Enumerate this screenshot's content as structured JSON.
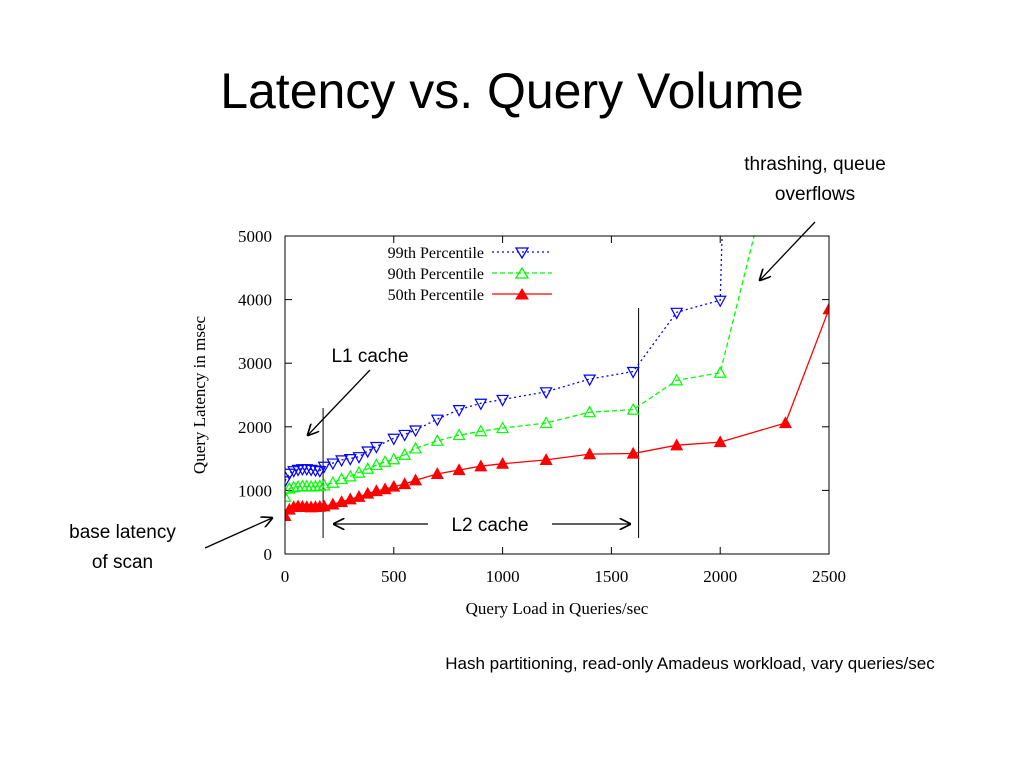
{
  "slide": {
    "title": "Latency vs. Query Volume",
    "caption": "Hash partitioning, read-only Amadeus workload, vary queries/sec"
  },
  "annotations": {
    "thrashing_line1": "thrashing, queue",
    "thrashing_line2": "overflows",
    "l1": "L1 cache",
    "l2": "L2 cache",
    "base_line1": "base latency",
    "base_line2": "of scan"
  },
  "chart_data": {
    "type": "line",
    "xlabel": "Query Load in Queries/sec",
    "ylabel": "Query Latency in msec",
    "xlim": [
      0,
      2500
    ],
    "ylim": [
      0,
      5000
    ],
    "xticks": [
      0,
      500,
      1000,
      1500,
      2000,
      2500
    ],
    "yticks": [
      0,
      1000,
      2000,
      3000,
      4000,
      5000
    ],
    "grid": false,
    "legend_position": "top-left",
    "vlines": [
      175,
      1625
    ],
    "series": [
      {
        "name": "99th Percentile",
        "color": "#0000ff",
        "marker": "triangle-down-open",
        "dash": "2,3",
        "points": [
          [
            0,
            1150
          ],
          [
            20,
            1270
          ],
          [
            40,
            1310
          ],
          [
            60,
            1330
          ],
          [
            80,
            1340
          ],
          [
            100,
            1340
          ],
          [
            120,
            1330
          ],
          [
            140,
            1320
          ],
          [
            160,
            1310
          ],
          [
            180,
            1380
          ],
          [
            220,
            1430
          ],
          [
            260,
            1480
          ],
          [
            300,
            1500
          ],
          [
            340,
            1530
          ],
          [
            380,
            1620
          ],
          [
            420,
            1690
          ],
          [
            500,
            1820
          ],
          [
            550,
            1880
          ],
          [
            600,
            1950
          ],
          [
            700,
            2120
          ],
          [
            800,
            2270
          ],
          [
            900,
            2370
          ],
          [
            1000,
            2430
          ],
          [
            1200,
            2550
          ],
          [
            1400,
            2750
          ],
          [
            1600,
            2870
          ],
          [
            1800,
            3800
          ],
          [
            2000,
            3990
          ],
          [
            2010,
            5200
          ]
        ]
      },
      {
        "name": "90th Percentile",
        "color": "#00ff00",
        "marker": "triangle-up-open",
        "dash": "5,3",
        "points": [
          [
            0,
            900
          ],
          [
            20,
            1030
          ],
          [
            40,
            1050
          ],
          [
            60,
            1060
          ],
          [
            80,
            1065
          ],
          [
            100,
            1065
          ],
          [
            120,
            1060
          ],
          [
            140,
            1065
          ],
          [
            160,
            1070
          ],
          [
            180,
            1080
          ],
          [
            220,
            1120
          ],
          [
            260,
            1180
          ],
          [
            300,
            1220
          ],
          [
            340,
            1280
          ],
          [
            380,
            1340
          ],
          [
            420,
            1400
          ],
          [
            460,
            1450
          ],
          [
            500,
            1490
          ],
          [
            550,
            1560
          ],
          [
            600,
            1660
          ],
          [
            700,
            1780
          ],
          [
            800,
            1870
          ],
          [
            900,
            1930
          ],
          [
            1000,
            1980
          ],
          [
            1200,
            2060
          ],
          [
            1400,
            2230
          ],
          [
            1600,
            2270
          ],
          [
            1800,
            2730
          ],
          [
            2000,
            2850
          ],
          [
            2170,
            5200
          ]
        ]
      },
      {
        "name": "50th Percentile",
        "color": "#ff0000",
        "marker": "triangle-up-filled",
        "dash": "",
        "points": [
          [
            0,
            600
          ],
          [
            20,
            700
          ],
          [
            40,
            740
          ],
          [
            60,
            750
          ],
          [
            80,
            745
          ],
          [
            100,
            740
          ],
          [
            120,
            735
          ],
          [
            140,
            740
          ],
          [
            160,
            745
          ],
          [
            180,
            750
          ],
          [
            220,
            780
          ],
          [
            260,
            820
          ],
          [
            300,
            860
          ],
          [
            340,
            900
          ],
          [
            380,
            950
          ],
          [
            420,
            990
          ],
          [
            460,
            1020
          ],
          [
            500,
            1060
          ],
          [
            550,
            1100
          ],
          [
            600,
            1160
          ],
          [
            700,
            1260
          ],
          [
            800,
            1320
          ],
          [
            900,
            1380
          ],
          [
            1000,
            1420
          ],
          [
            1200,
            1480
          ],
          [
            1400,
            1570
          ],
          [
            1600,
            1580
          ],
          [
            1800,
            1710
          ],
          [
            2000,
            1760
          ],
          [
            2300,
            2060
          ],
          [
            2500,
            3850
          ]
        ]
      }
    ]
  }
}
